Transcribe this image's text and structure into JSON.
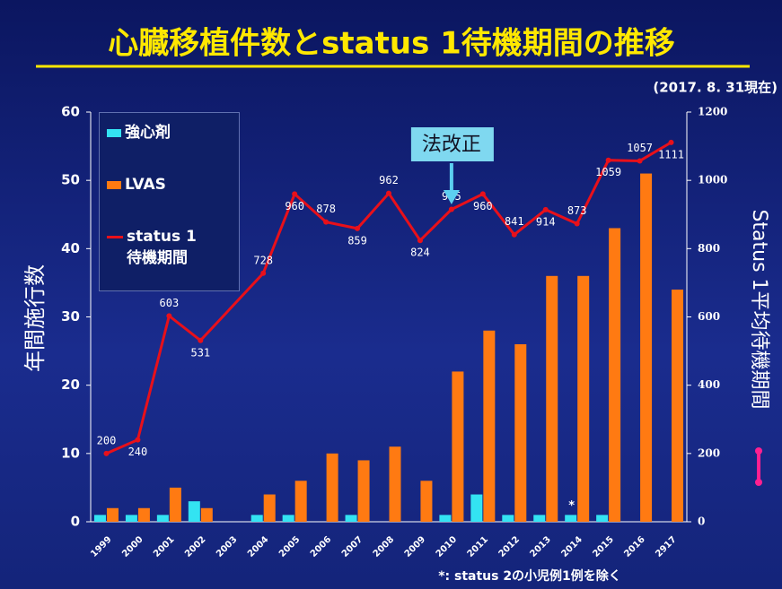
{
  "chart_data": {
    "type": "bar-line",
    "title": "心臓移植件数とstatus 1待機期間の推移",
    "subtitle": "(2017. 8. 31現在)",
    "y_label": "年間施行数",
    "y2_label": "Status 1平均待機期間",
    "annotation": "法改正",
    "footnote": "*: status 2の小児例1例を除く",
    "footnote_mark": "*",
    "categories": [
      "1999",
      "2000",
      "2001",
      "2002",
      "2003",
      "2004",
      "2005",
      "2006",
      "2007",
      "2008",
      "2009",
      "2010",
      "2011",
      "2012",
      "2013",
      "2014",
      "2015",
      "2016",
      "2917"
    ],
    "series": [
      {
        "name": "強心剤",
        "color": "#33e3f2",
        "values": [
          1,
          1,
          1,
          3,
          0,
          1,
          1,
          0,
          1,
          0,
          0,
          1,
          4,
          1,
          1,
          1,
          1,
          0,
          0
        ]
      },
      {
        "name": "LVAS",
        "color": "#ff7a12",
        "values": [
          2,
          2,
          5,
          2,
          0,
          4,
          6,
          10,
          9,
          11,
          6,
          22,
          28,
          26,
          36,
          36,
          43,
          51,
          34
        ]
      },
      {
        "name": "status 1\n待機期間",
        "color": "#e8101a",
        "axis": "y2",
        "x": [
          "1999",
          "2000",
          "2001",
          "2002",
          "2004",
          "2005",
          "2006",
          "2007",
          "2008",
          "2009",
          "2010",
          "2011",
          "2012",
          "2013",
          "2014",
          "2015",
          "2016",
          "2917"
        ],
        "values": [
          200,
          240,
          603,
          531,
          728,
          960,
          878,
          859,
          962,
          824,
          915,
          960,
          841,
          914,
          873,
          1059,
          1057,
          1111
        ]
      }
    ],
    "ylim": [
      0,
      60
    ],
    "yticks": [
      0,
      10,
      20,
      30,
      40,
      50,
      60
    ],
    "y2lim": [
      0,
      1200
    ],
    "y2ticks": [
      0,
      200,
      400,
      600,
      800,
      1000,
      1200
    ]
  }
}
